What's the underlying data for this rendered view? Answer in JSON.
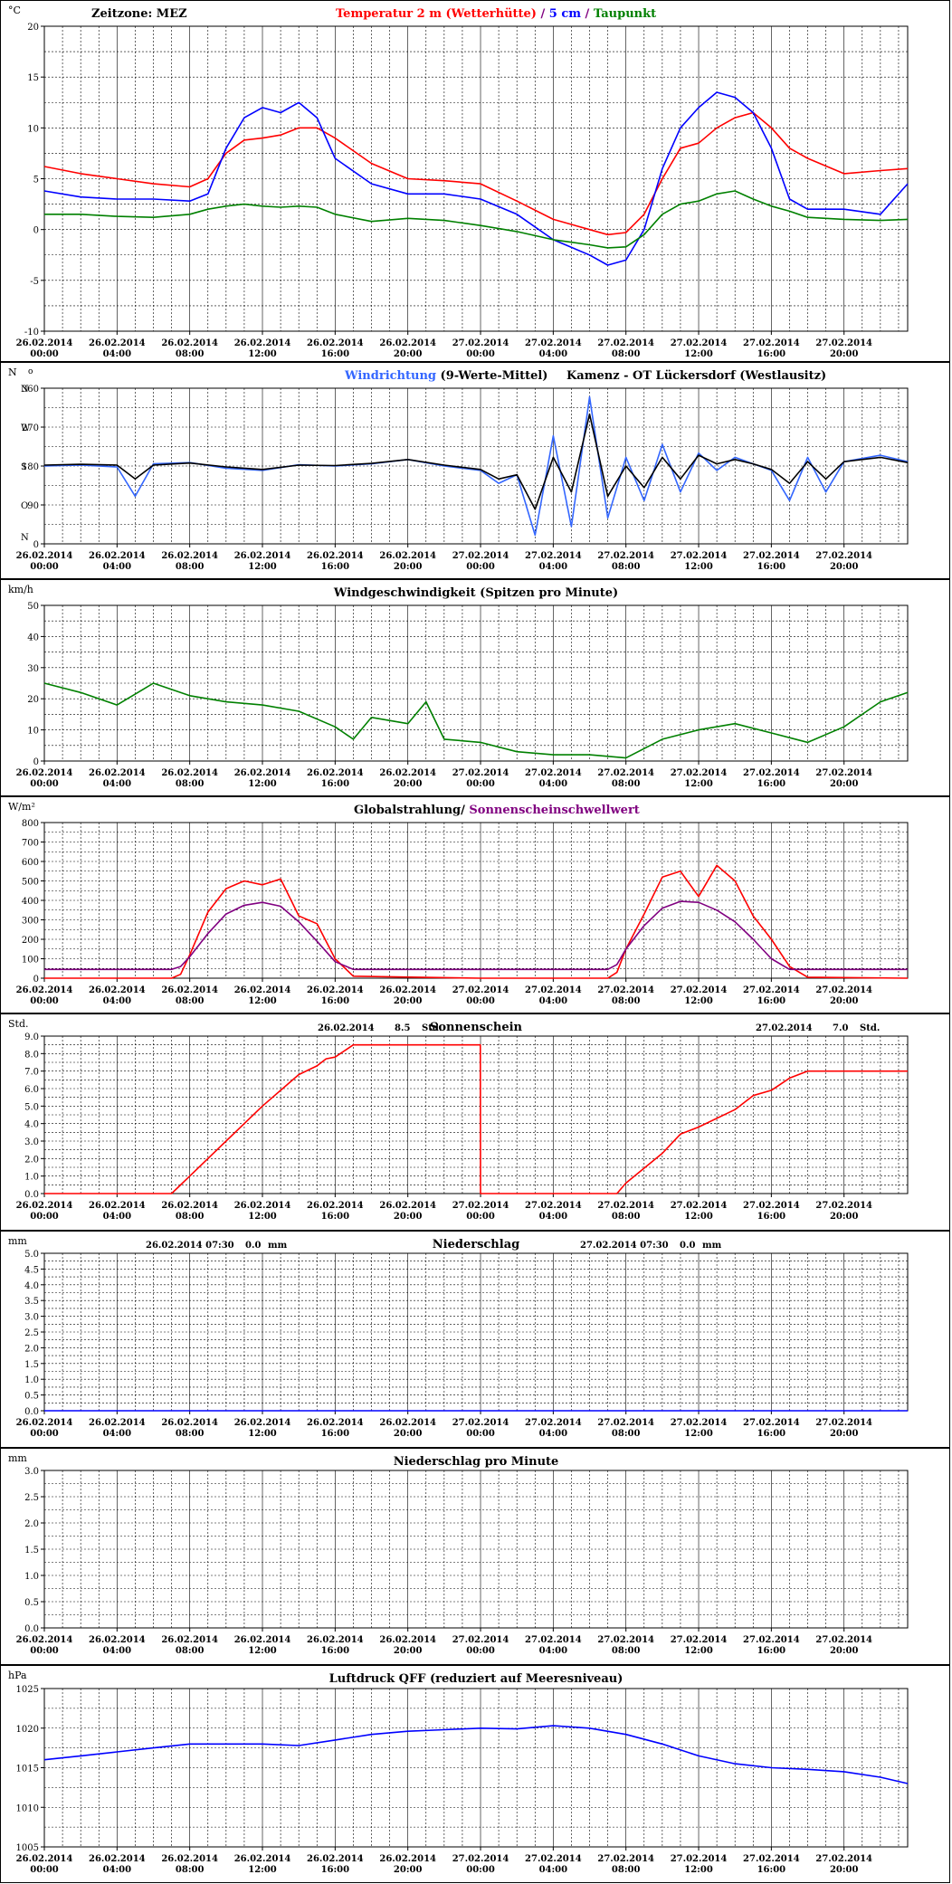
{
  "x_ticks": [
    {
      "date": "26.02.2014",
      "time": "00:00"
    },
    {
      "date": "26.02.2014",
      "time": "04:00"
    },
    {
      "date": "26.02.2014",
      "time": "08:00"
    },
    {
      "date": "26.02.2014",
      "time": "12:00"
    },
    {
      "date": "26.02.2014",
      "time": "16:00"
    },
    {
      "date": "26.02.2014",
      "time": "20:00"
    },
    {
      "date": "27.02.2014",
      "time": "00:00"
    },
    {
      "date": "27.02.2014",
      "time": "04:00"
    },
    {
      "date": "27.02.2014",
      "time": "08:00"
    },
    {
      "date": "27.02.2014",
      "time": "12:00"
    },
    {
      "date": "27.02.2014",
      "time": "16:00"
    },
    {
      "date": "27.02.2014",
      "time": "20:00"
    }
  ],
  "colors": {
    "temperature": "#ff0000",
    "soil": "#0000ff",
    "dewpoint": "#008000",
    "wind_dir": "#3366ff",
    "wind_dir_mean": "#000000",
    "wind_speed": "#008000",
    "radiation": "#ff0000",
    "threshold": "#800080",
    "sunshine": "#ff0000",
    "pressure": "#0000ff"
  },
  "chart_data": [
    {
      "id": "temperature",
      "type": "line",
      "unit": "°C",
      "timezone_label": "Zeitzone: MEZ",
      "title_parts": [
        {
          "text": "Temperatur 2 m (Wetterhütte)",
          "color": "#ff0000"
        },
        {
          "text": "  /  ",
          "color": "#800080"
        },
        {
          "text": "5 cm",
          "color": "#0000ff"
        },
        {
          "text": " / ",
          "color": "#800080"
        },
        {
          "text": "Taupunkt",
          "color": "#008000"
        }
      ],
      "ylim": [
        -10,
        20
      ],
      "yticks": [
        20,
        15,
        10,
        5,
        0,
        -5,
        -10
      ],
      "ytick_labels": [
        "20",
        "15",
        "10",
        "5",
        "0",
        "-5",
        "-10"
      ],
      "x_hours": [
        0,
        2,
        4,
        6,
        8,
        9,
        10,
        11,
        12,
        13,
        14,
        15,
        16,
        18,
        20,
        22,
        24,
        26,
        28,
        30,
        31,
        32,
        33,
        34,
        35,
        36,
        37,
        38,
        39,
        40,
        41,
        42,
        44,
        46,
        47.5
      ],
      "series": [
        {
          "name": "Temperatur 2 m (Wetterhütte)",
          "color": "#ff0000",
          "values": [
            6.2,
            5.5,
            5,
            4.5,
            4.2,
            5,
            7.5,
            8.8,
            9,
            9.3,
            10,
            10,
            9,
            6.5,
            5,
            4.8,
            4.5,
            2.8,
            1,
            0,
            -0.5,
            -0.3,
            1.5,
            5,
            8,
            8.5,
            10,
            11,
            11.5,
            10,
            8,
            7,
            5.5,
            5.8,
            6
          ]
        },
        {
          "name": "5 cm",
          "color": "#0000ff",
          "values": [
            3.8,
            3.2,
            3,
            3,
            2.8,
            3.5,
            8,
            11,
            12,
            11.5,
            12.5,
            11,
            7,
            4.5,
            3.5,
            3.5,
            3,
            1.5,
            -1,
            -2.5,
            -3.5,
            -3,
            0,
            6,
            10,
            12,
            13.5,
            13,
            11.5,
            8,
            3,
            2,
            2,
            1.5,
            4.5
          ]
        },
        {
          "name": "Taupunkt",
          "color": "#008000",
          "values": [
            1.5,
            1.5,
            1.3,
            1.2,
            1.5,
            2,
            2.3,
            2.5,
            2.3,
            2.2,
            2.3,
            2.2,
            1.5,
            0.8,
            1.1,
            0.9,
            0.4,
            -0.2,
            -1,
            -1.5,
            -1.8,
            -1.7,
            -0.5,
            1.5,
            2.5,
            2.8,
            3.5,
            3.8,
            3,
            2.3,
            1.8,
            1.2,
            1,
            0.9,
            1
          ]
        }
      ]
    },
    {
      "id": "wind_direction",
      "type": "line",
      "unit": "N",
      "degree_mark": "o",
      "title_parts": [
        {
          "text": "Windrichtung",
          "color": "#3366ff"
        },
        {
          "text": " (9-Werte-Mittel)",
          "color": "#000000"
        }
      ],
      "station": "Kamenz - OT Lückersdorf (Westlausitz)",
      "ylim": [
        0,
        360
      ],
      "yticks": [
        360,
        270,
        180,
        90,
        0
      ],
      "ytick_labels": [
        "360",
        "270",
        "180",
        "90",
        "0"
      ],
      "y_letters": [
        {
          "v": 360,
          "t": "N"
        },
        {
          "v": 270,
          "t": "W"
        },
        {
          "v": 180,
          "t": "S"
        },
        {
          "v": 90,
          "t": "O"
        },
        {
          "v": 0,
          "t": "N"
        }
      ],
      "x_hours": [
        0,
        2,
        4,
        5,
        6,
        8,
        10,
        12,
        14,
        16,
        18,
        20,
        22,
        24,
        25,
        26,
        27,
        28,
        29,
        30,
        31,
        32,
        33,
        34,
        35,
        36,
        37,
        38,
        39,
        40,
        41,
        42,
        43,
        44,
        46,
        47.5
      ],
      "series": [
        {
          "name": "Windrichtung",
          "color": "#3366ff",
          "values": [
            180,
            182,
            178,
            110,
            185,
            188,
            175,
            170,
            183,
            180,
            185,
            195,
            180,
            170,
            140,
            160,
            20,
            250,
            40,
            340,
            60,
            200,
            100,
            230,
            120,
            210,
            170,
            200,
            185,
            170,
            100,
            200,
            120,
            190,
            205,
            190
          ]
        },
        {
          "name": "9-Werte-Mittel",
          "color": "#000000",
          "values": [
            182,
            184,
            182,
            150,
            182,
            187,
            178,
            172,
            182,
            181,
            186,
            195,
            182,
            172,
            150,
            160,
            80,
            200,
            120,
            300,
            110,
            180,
            130,
            200,
            150,
            205,
            185,
            195,
            185,
            172,
            140,
            190,
            150,
            190,
            200,
            188
          ]
        }
      ]
    },
    {
      "id": "wind_speed",
      "type": "line",
      "unit": "km/h",
      "title": "Windgeschwindigkeit (Spitzen pro Minute)",
      "ylim": [
        0,
        50
      ],
      "yticks": [
        50,
        40,
        30,
        20,
        10,
        0
      ],
      "ytick_labels": [
        "50",
        "40",
        "30",
        "20",
        "10",
        "0"
      ],
      "x_hours": [
        0,
        2,
        4,
        6,
        8,
        10,
        12,
        14,
        16,
        17,
        18,
        20,
        21,
        22,
        24,
        26,
        28,
        30,
        32,
        34,
        36,
        38,
        40,
        42,
        44,
        45,
        46,
        47.5
      ],
      "series": [
        {
          "name": "Windgeschwindigkeit",
          "color": "#008000",
          "values": [
            25,
            22,
            18,
            25,
            21,
            19,
            18,
            16,
            11,
            7,
            14,
            12,
            19,
            7,
            6,
            3,
            2,
            2,
            1,
            7,
            10,
            12,
            9,
            6,
            11,
            15,
            19,
            22
          ]
        }
      ]
    },
    {
      "id": "radiation",
      "type": "line",
      "unit": "W/m²",
      "title_parts": [
        {
          "text": "Globalstrahlung/ ",
          "color": "#000000"
        },
        {
          "text": "Sonnenscheinschwellwert",
          "color": "#800080"
        }
      ],
      "ylim": [
        0,
        800
      ],
      "yticks": [
        800,
        700,
        600,
        500,
        400,
        300,
        200,
        100,
        0
      ],
      "ytick_labels": [
        "800",
        "700",
        "600",
        "500",
        "400",
        "300",
        "200",
        "100",
        "0"
      ],
      "x_hours": [
        0,
        7,
        7.5,
        8,
        9,
        10,
        11,
        12,
        13,
        14,
        15,
        16,
        17,
        24,
        31,
        31.5,
        32,
        33,
        34,
        35,
        36,
        37,
        38,
        39,
        40,
        41,
        42,
        47.5
      ],
      "series": [
        {
          "name": "Globalstrahlung",
          "color": "#ff0000",
          "values": [
            0,
            0,
            20,
            120,
            340,
            460,
            500,
            480,
            510,
            320,
            280,
            100,
            10,
            0,
            0,
            30,
            150,
            330,
            520,
            550,
            420,
            580,
            500,
            320,
            200,
            60,
            5,
            0
          ]
        },
        {
          "name": "Sonnenscheinschwellwert",
          "color": "#800080",
          "values": [
            45,
            45,
            60,
            110,
            230,
            330,
            375,
            390,
            370,
            290,
            190,
            85,
            45,
            45,
            45,
            70,
            150,
            270,
            360,
            395,
            390,
            350,
            290,
            200,
            100,
            45,
            45,
            45
          ]
        }
      ]
    },
    {
      "id": "sunshine",
      "type": "line",
      "unit": "Std.",
      "title": "Sonnenschein",
      "summaries": [
        {
          "date": "26.02.2014",
          "value": "8.5",
          "unit": "Std."
        },
        {
          "date": "27.02.2014",
          "value": "7.0",
          "unit": "Std."
        }
      ],
      "ylim": [
        0,
        9
      ],
      "yticks": [
        9,
        8,
        7,
        6,
        5,
        4,
        3,
        2,
        1,
        0
      ],
      "ytick_labels": [
        "9.0",
        "8.0",
        "7.0",
        "6.0",
        "5.0",
        "4.0",
        "3.0",
        "2.0",
        "1.0",
        "0.0"
      ],
      "x_hours": [
        0,
        7,
        8,
        10,
        12,
        14,
        15,
        15.5,
        16,
        17,
        23.99,
        24,
        31.5,
        32,
        34,
        35,
        36,
        38,
        39,
        40,
        41,
        42,
        47.5
      ],
      "series": [
        {
          "name": "Sonnenschein",
          "color": "#ff0000",
          "values": [
            0,
            0,
            1,
            3,
            5,
            6.8,
            7.3,
            7.7,
            7.8,
            8.5,
            8.5,
            0,
            0,
            0.6,
            2.3,
            3.4,
            3.8,
            4.8,
            5.6,
            5.9,
            6.6,
            7,
            7
          ]
        }
      ]
    },
    {
      "id": "precipitation",
      "type": "line",
      "unit": "mm",
      "title": "Niederschlag",
      "summaries": [
        {
          "date": "26.02.2014 07:30",
          "value": "0.0",
          "unit": "mm"
        },
        {
          "date": "27.02.2014 07:30",
          "value": "0.0",
          "unit": "mm"
        }
      ],
      "ylim": [
        0,
        5
      ],
      "yticks": [
        5,
        4.5,
        4,
        3.5,
        3,
        2.5,
        2,
        1.5,
        1,
        0.5,
        0
      ],
      "ytick_labels": [
        "5.0",
        "4.5",
        "4.0",
        "3.5",
        "3.0",
        "2.5",
        "2.0",
        "1.5",
        "1.0",
        "0.5",
        "0.0"
      ],
      "x_hours": [
        0,
        47.5
      ],
      "series": [
        {
          "name": "Niederschlag",
          "color": "#0000ff",
          "values": [
            0,
            0
          ]
        }
      ]
    },
    {
      "id": "precip_minute",
      "type": "line",
      "unit": "mm",
      "title": "Niederschlag pro Minute",
      "ylim": [
        0,
        3
      ],
      "yticks": [
        3,
        2.5,
        2,
        1.5,
        1,
        0.5,
        0
      ],
      "ytick_labels": [
        "3.0",
        "2.5",
        "2.0",
        "1.5",
        "1.0",
        "0.5",
        "0.0"
      ],
      "x_hours": [],
      "series": []
    },
    {
      "id": "pressure",
      "type": "line",
      "unit": "hPa",
      "title": "Luftdruck QFF (reduziert auf Meeresniveau)",
      "ylim": [
        1005,
        1025
      ],
      "yticks": [
        1025,
        1020,
        1015,
        1010,
        1005
      ],
      "ytick_labels": [
        "1025",
        "1020",
        "1015",
        "1010",
        "1005"
      ],
      "x_hours": [
        0,
        2,
        4,
        6,
        8,
        10,
        12,
        14,
        16,
        18,
        20,
        22,
        24,
        26,
        28,
        30,
        32,
        34,
        36,
        38,
        40,
        42,
        44,
        46,
        47.5
      ],
      "series": [
        {
          "name": "Luftdruck QFF",
          "color": "#0000ff",
          "values": [
            1016,
            1016.5,
            1017,
            1017.5,
            1018,
            1018,
            1018,
            1017.8,
            1018.5,
            1019.2,
            1019.6,
            1019.8,
            1020,
            1019.9,
            1020.3,
            1020,
            1019.2,
            1018,
            1016.5,
            1015.5,
            1015,
            1014.8,
            1014.5,
            1013.8,
            1013
          ]
        }
      ]
    }
  ]
}
